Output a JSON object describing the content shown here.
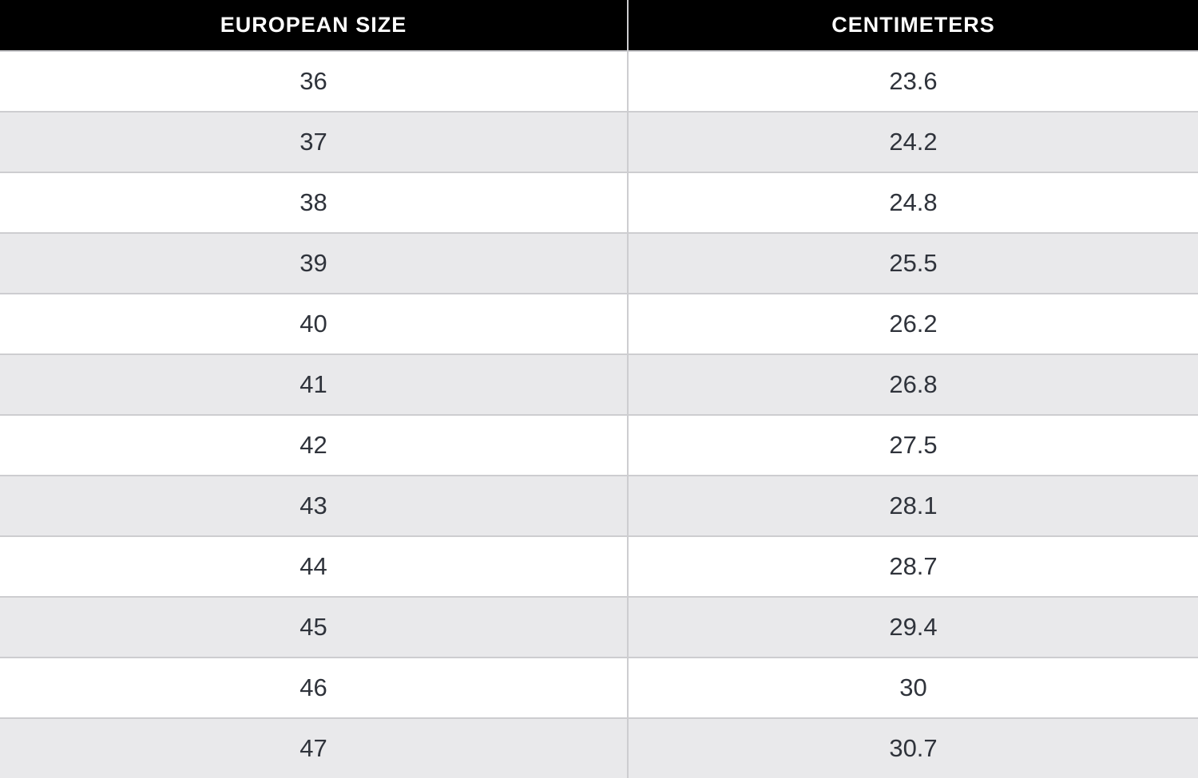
{
  "table": {
    "columns": [
      {
        "key": "eu",
        "label": "EUROPEAN SIZE"
      },
      {
        "key": "cm",
        "label": "CENTIMETERS"
      }
    ],
    "rows": [
      {
        "eu": "36",
        "cm": "23.6"
      },
      {
        "eu": "37",
        "cm": "24.2"
      },
      {
        "eu": "38",
        "cm": "24.8"
      },
      {
        "eu": "39",
        "cm": "25.5"
      },
      {
        "eu": "40",
        "cm": "26.2"
      },
      {
        "eu": "41",
        "cm": "26.8"
      },
      {
        "eu": "42",
        "cm": "27.5"
      },
      {
        "eu": "43",
        "cm": "28.1"
      },
      {
        "eu": "44",
        "cm": "28.7"
      },
      {
        "eu": "45",
        "cm": "29.4"
      },
      {
        "eu": "46",
        "cm": "30"
      },
      {
        "eu": "47",
        "cm": "30.7"
      }
    ]
  },
  "colors": {
    "header_bg": "#000000",
    "header_text": "#ffffff",
    "row_bg": "#ffffff",
    "row_alt_bg": "#e9e9eb",
    "border": "#cdcdd0",
    "cell_text": "#2f333b"
  }
}
